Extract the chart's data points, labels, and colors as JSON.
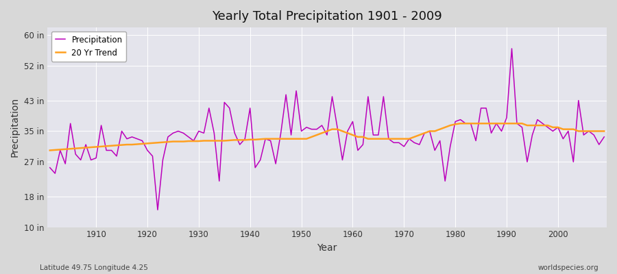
{
  "title": "Yearly Total Precipitation 1901 - 2009",
  "xlabel": "Year",
  "ylabel": "Precipitation",
  "footer_left": "Latitude 49.75 Longitude 4.25",
  "footer_right": "worldspecies.org",
  "precip_color": "#bb00bb",
  "trend_color": "#ffa020",
  "bg_color": "#dcdcdc",
  "plot_bg_color": "#e0e0e8",
  "ylim": [
    10,
    62
  ],
  "yticks": [
    10,
    18,
    27,
    35,
    43,
    52,
    60
  ],
  "ytick_labels": [
    "10 in",
    "18 in",
    "27 in",
    "35 in",
    "43 in",
    "52 in",
    "60 in"
  ],
  "xticks": [
    1910,
    1920,
    1930,
    1940,
    1950,
    1960,
    1970,
    1980,
    1990,
    2000
  ],
  "years": [
    1901,
    1902,
    1903,
    1904,
    1905,
    1906,
    1907,
    1908,
    1909,
    1910,
    1911,
    1912,
    1913,
    1914,
    1915,
    1916,
    1917,
    1918,
    1919,
    1920,
    1921,
    1922,
    1923,
    1924,
    1925,
    1926,
    1927,
    1928,
    1929,
    1930,
    1931,
    1932,
    1933,
    1934,
    1935,
    1936,
    1937,
    1938,
    1939,
    1940,
    1941,
    1942,
    1943,
    1944,
    1945,
    1946,
    1947,
    1948,
    1949,
    1950,
    1951,
    1952,
    1953,
    1954,
    1955,
    1956,
    1957,
    1958,
    1959,
    1960,
    1961,
    1962,
    1963,
    1964,
    1965,
    1966,
    1967,
    1968,
    1969,
    1970,
    1971,
    1972,
    1973,
    1974,
    1975,
    1976,
    1977,
    1978,
    1979,
    1980,
    1981,
    1982,
    1983,
    1984,
    1985,
    1986,
    1987,
    1988,
    1989,
    1990,
    1991,
    1992,
    1993,
    1994,
    1995,
    1996,
    1997,
    1998,
    1999,
    2000,
    2001,
    2002,
    2003,
    2004,
    2005,
    2006,
    2007,
    2008,
    2009
  ],
  "precip": [
    25.5,
    24.0,
    30.0,
    26.5,
    37.0,
    29.0,
    27.5,
    31.5,
    27.5,
    28.0,
    36.5,
    30.0,
    30.0,
    28.5,
    35.0,
    33.0,
    33.5,
    33.0,
    32.5,
    30.0,
    28.5,
    14.5,
    27.5,
    33.5,
    34.5,
    35.0,
    34.5,
    33.5,
    32.5,
    35.0,
    34.5,
    41.0,
    34.5,
    22.0,
    42.5,
    41.0,
    34.5,
    31.5,
    33.0,
    41.0,
    25.5,
    27.5,
    33.0,
    32.5,
    26.5,
    34.5,
    44.5,
    34.0,
    45.5,
    35.0,
    36.0,
    35.5,
    35.5,
    36.5,
    34.0,
    44.0,
    36.0,
    27.5,
    35.0,
    37.5,
    30.0,
    31.5,
    44.0,
    34.0,
    34.0,
    44.0,
    33.0,
    32.0,
    32.0,
    31.0,
    33.0,
    32.0,
    31.5,
    34.5,
    35.0,
    30.0,
    32.5,
    22.0,
    31.0,
    37.5,
    38.0,
    37.0,
    37.0,
    32.5,
    41.0,
    41.0,
    34.5,
    37.0,
    35.0,
    38.5,
    56.5,
    37.0,
    36.0,
    27.0,
    34.0,
    38.0,
    37.0,
    36.0,
    35.0,
    36.0,
    33.0,
    35.0,
    27.0,
    43.0,
    34.0,
    35.0,
    34.0,
    31.5,
    33.5
  ],
  "trend": [
    30.0,
    30.1,
    30.2,
    30.3,
    30.4,
    30.5,
    30.6,
    30.7,
    30.8,
    30.9,
    31.0,
    31.1,
    31.2,
    31.3,
    31.4,
    31.5,
    31.5,
    31.6,
    31.7,
    31.8,
    31.9,
    32.0,
    32.1,
    32.2,
    32.3,
    32.3,
    32.3,
    32.4,
    32.4,
    32.4,
    32.5,
    32.5,
    32.5,
    32.5,
    32.5,
    32.6,
    32.7,
    32.7,
    32.7,
    32.8,
    32.8,
    32.9,
    33.0,
    33.0,
    33.0,
    33.0,
    33.0,
    33.0,
    33.0,
    33.0,
    33.0,
    33.5,
    34.0,
    34.5,
    35.0,
    35.5,
    35.5,
    35.0,
    34.5,
    34.0,
    33.5,
    33.5,
    33.0,
    33.0,
    33.0,
    33.0,
    33.0,
    33.0,
    33.0,
    33.0,
    33.0,
    33.5,
    34.0,
    34.5,
    35.0,
    35.0,
    35.5,
    36.0,
    36.5,
    36.8,
    37.0,
    37.0,
    37.0,
    37.0,
    37.0,
    37.0,
    37.0,
    37.0,
    37.0,
    37.0,
    37.0,
    37.0,
    37.0,
    36.5,
    36.5,
    36.5,
    36.5,
    36.5,
    36.0,
    36.0,
    35.5,
    35.5,
    35.5,
    35.0,
    35.0,
    35.0,
    35.0,
    35.0,
    35.0
  ]
}
